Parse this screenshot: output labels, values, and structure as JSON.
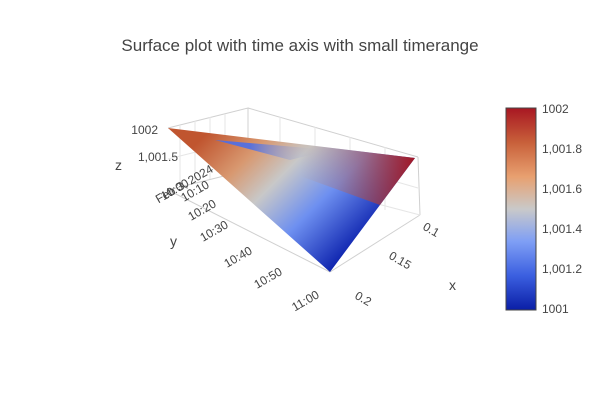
{
  "chart_data": {
    "type": "surface",
    "title": "Surface plot with time axis with small timerange",
    "x_axis": {
      "title": "x",
      "ticks": [
        "0.1",
        "0.15",
        "0.2"
      ],
      "range": [
        0.07,
        0.21
      ]
    },
    "y_axis": {
      "title": "y",
      "ticks": [
        "10:00\nFeb 3, 2024",
        "10:10",
        "10:20",
        "10:30",
        "10:40",
        "10:50",
        "11:00"
      ],
      "range": [
        "2024-02-03 10:00",
        "2024-02-03 11:00"
      ]
    },
    "z_axis": {
      "title": "z",
      "ticks": [
        "1001.5",
        "1002"
      ],
      "tick_labels": [
        "1,001.5",
        "1002"
      ],
      "range": [
        1001,
        1002
      ]
    },
    "colorbar": {
      "colorscale": "balance",
      "ticks": [
        "1001",
        "1,001.2",
        "1,001.4",
        "1,001.6",
        "1,001.8",
        "1002"
      ],
      "range": [
        1001,
        1002
      ],
      "colors": [
        "#0a1ea6",
        "#3b5fe0",
        "#7f9ff5",
        "#c9c9c9",
        "#e8a070",
        "#c8603a",
        "#a81722"
      ]
    },
    "surface_corners": [
      {
        "x": 0.07,
        "y": "2024-02-03 10:00",
        "z": 1002
      },
      {
        "x": 0.21,
        "y": "2024-02-03 10:00",
        "z": 1002
      },
      {
        "x": 0.21,
        "y": "2024-02-03 11:00",
        "z": 1001
      }
    ]
  }
}
